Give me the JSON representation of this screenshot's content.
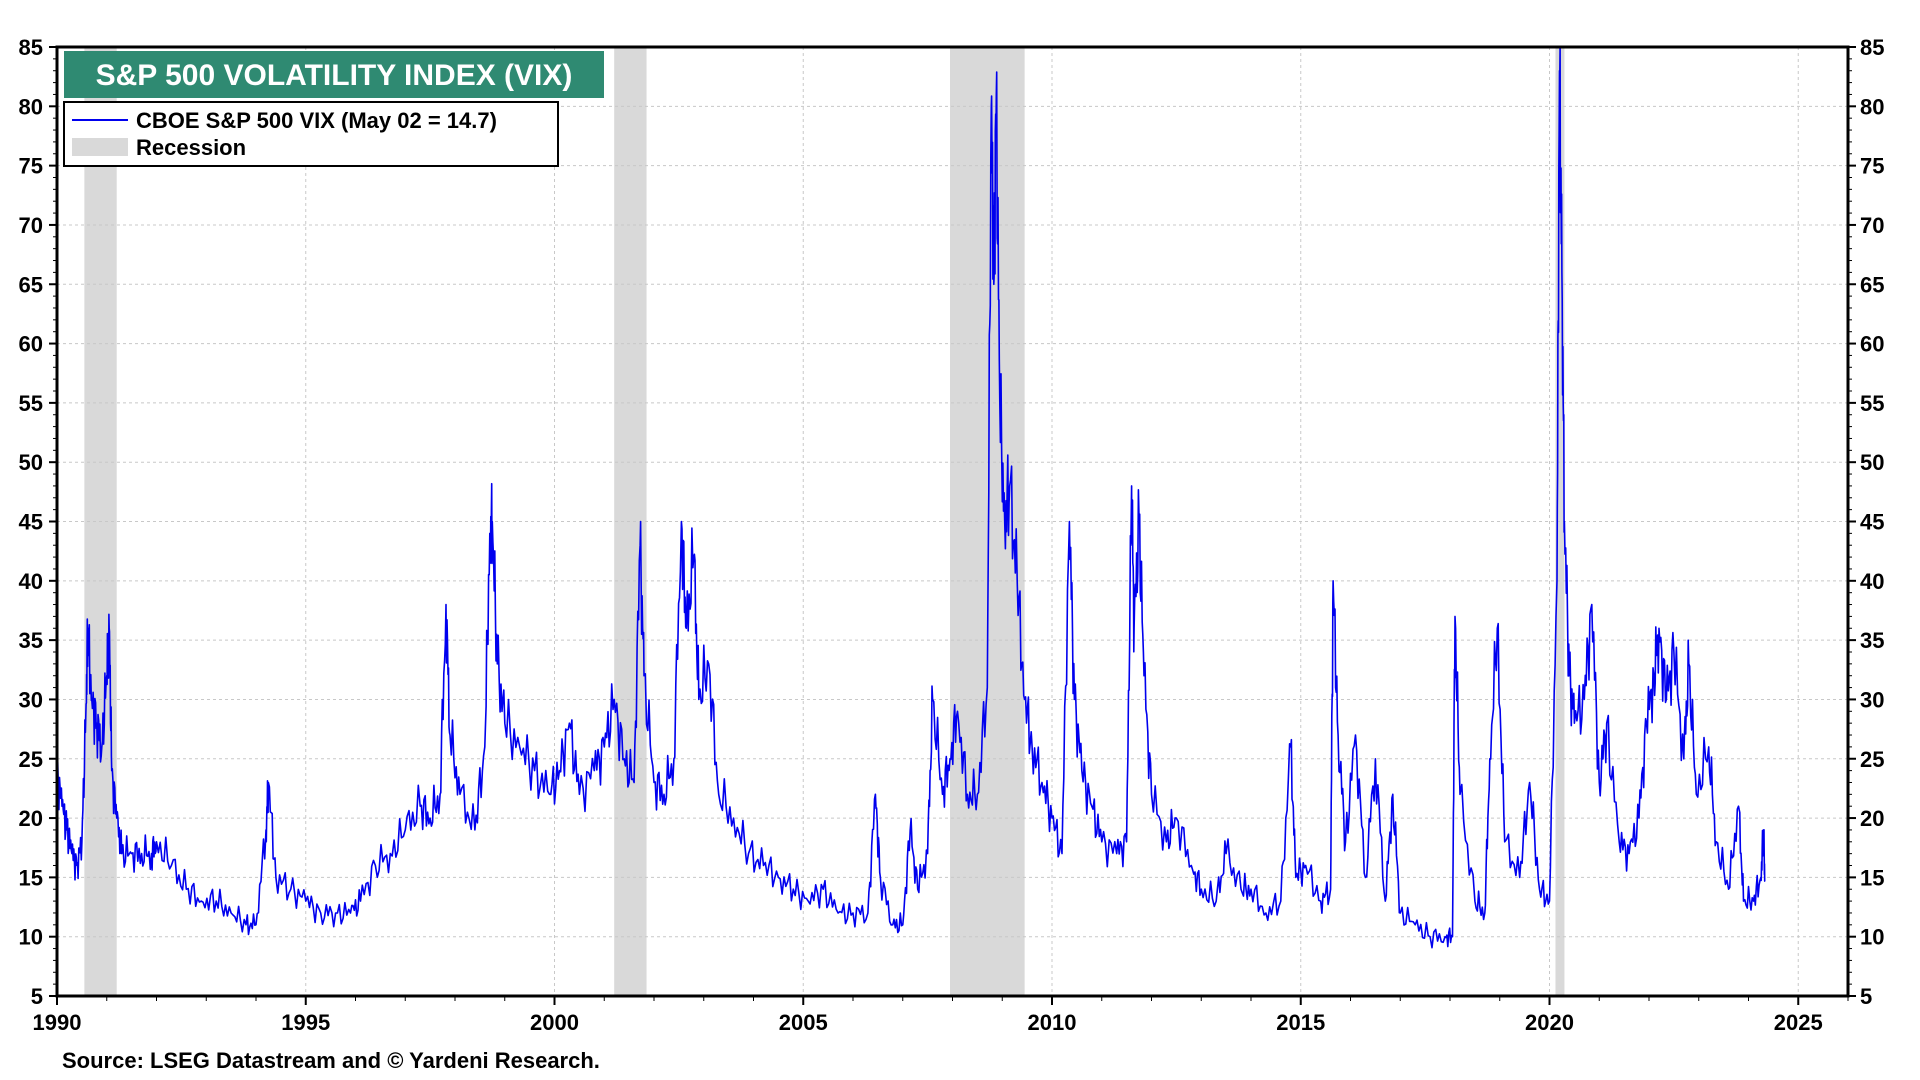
{
  "chart_data": {
    "type": "line",
    "title": "S&P 500 VOLATILITY INDEX (VIX)",
    "source": "Source: LSEG Datastream and © Yardeni Research.",
    "legend": {
      "placement": "top-left",
      "items": [
        {
          "label": "CBOE S&P 500 VIX (May 02 = 14.7)",
          "kind": "line"
        },
        {
          "label": "Recession",
          "kind": "shade"
        }
      ]
    },
    "colors": {
      "series": "#0000ee",
      "recession": "#d9d9d9",
      "title_bg": "#2f8a72",
      "grid": "#c8c8c8"
    },
    "xlim": [
      1990,
      2026
    ],
    "ylim": [
      5,
      85
    ],
    "x_ticks": [
      1990,
      1995,
      2000,
      2005,
      2010,
      2015,
      2020,
      2025
    ],
    "y_ticks": [
      5,
      10,
      15,
      20,
      25,
      30,
      35,
      40,
      45,
      50,
      55,
      60,
      65,
      70,
      75,
      80,
      85
    ],
    "y_axis_both_sides": true,
    "grid": true,
    "recessions": [
      [
        1990.55,
        1991.2
      ],
      [
        2001.2,
        2001.85
      ],
      [
        2007.95,
        2009.45
      ],
      [
        2020.12,
        2020.3
      ]
    ],
    "series": [
      {
        "name": "CBOE S&P 500 VIX (May 02 = 14.7)",
        "points": [
          [
            1990.0,
            24
          ],
          [
            1990.1,
            21
          ],
          [
            1990.2,
            19
          ],
          [
            1990.3,
            17
          ],
          [
            1990.4,
            16
          ],
          [
            1990.5,
            18
          ],
          [
            1990.58,
            29
          ],
          [
            1990.62,
            36
          ],
          [
            1990.7,
            30
          ],
          [
            1990.8,
            28
          ],
          [
            1990.9,
            26
          ],
          [
            1991.0,
            32
          ],
          [
            1991.05,
            36
          ],
          [
            1991.1,
            24
          ],
          [
            1991.2,
            20
          ],
          [
            1991.3,
            17
          ],
          [
            1991.5,
            17
          ],
          [
            1991.7,
            17
          ],
          [
            1991.9,
            17
          ],
          [
            1992.0,
            18
          ],
          [
            1992.3,
            16
          ],
          [
            1992.6,
            14
          ],
          [
            1992.9,
            13
          ],
          [
            1993.2,
            13
          ],
          [
            1993.5,
            12
          ],
          [
            1993.8,
            11
          ],
          [
            1994.0,
            11
          ],
          [
            1994.2,
            19
          ],
          [
            1994.25,
            23
          ],
          [
            1994.4,
            15
          ],
          [
            1994.7,
            14
          ],
          [
            1995.0,
            13
          ],
          [
            1995.3,
            12
          ],
          [
            1995.6,
            12
          ],
          [
            1995.9,
            12
          ],
          [
            1996.1,
            13
          ],
          [
            1996.4,
            16
          ],
          [
            1996.7,
            17
          ],
          [
            1997.0,
            19
          ],
          [
            1997.3,
            21
          ],
          [
            1997.5,
            20
          ],
          [
            1997.7,
            22
          ],
          [
            1997.82,
            38
          ],
          [
            1997.9,
            27
          ],
          [
            1998.1,
            22
          ],
          [
            1998.4,
            19
          ],
          [
            1998.6,
            26
          ],
          [
            1998.7,
            44
          ],
          [
            1998.75,
            45
          ],
          [
            1998.85,
            33
          ],
          [
            1999.0,
            28
          ],
          [
            1999.3,
            26
          ],
          [
            1999.6,
            24
          ],
          [
            1999.9,
            22
          ],
          [
            2000.1,
            24
          ],
          [
            2000.3,
            28
          ],
          [
            2000.5,
            22
          ],
          [
            2000.8,
            24
          ],
          [
            2001.0,
            26
          ],
          [
            2001.2,
            30
          ],
          [
            2001.4,
            25
          ],
          [
            2001.6,
            23
          ],
          [
            2001.72,
            43
          ],
          [
            2001.8,
            32
          ],
          [
            2002.0,
            23
          ],
          [
            2002.2,
            22
          ],
          [
            2002.4,
            25
          ],
          [
            2002.55,
            45
          ],
          [
            2002.65,
            36
          ],
          [
            2002.8,
            42
          ],
          [
            2002.9,
            30
          ],
          [
            2003.1,
            33
          ],
          [
            2003.3,
            22
          ],
          [
            2003.6,
            20
          ],
          [
            2003.9,
            17
          ],
          [
            2004.2,
            16
          ],
          [
            2004.5,
            15
          ],
          [
            2004.8,
            14
          ],
          [
            2005.1,
            13
          ],
          [
            2005.4,
            14
          ],
          [
            2005.7,
            12
          ],
          [
            2006.0,
            12
          ],
          [
            2006.3,
            12
          ],
          [
            2006.45,
            22
          ],
          [
            2006.55,
            15
          ],
          [
            2006.8,
            11
          ],
          [
            2007.0,
            11
          ],
          [
            2007.15,
            19
          ],
          [
            2007.3,
            14
          ],
          [
            2007.5,
            17
          ],
          [
            2007.6,
            30
          ],
          [
            2007.8,
            22
          ],
          [
            2007.95,
            25
          ],
          [
            2008.1,
            29
          ],
          [
            2008.3,
            22
          ],
          [
            2008.5,
            22
          ],
          [
            2008.7,
            31
          ],
          [
            2008.78,
            80
          ],
          [
            2008.83,
            65
          ],
          [
            2008.88,
            81
          ],
          [
            2008.95,
            55
          ],
          [
            2009.05,
            45
          ],
          [
            2009.15,
            48
          ],
          [
            2009.3,
            40
          ],
          [
            2009.45,
            30
          ],
          [
            2009.6,
            26
          ],
          [
            2009.8,
            23
          ],
          [
            2010.0,
            20
          ],
          [
            2010.2,
            17
          ],
          [
            2010.35,
            45
          ],
          [
            2010.45,
            30
          ],
          [
            2010.6,
            24
          ],
          [
            2010.8,
            21
          ],
          [
            2011.0,
            18
          ],
          [
            2011.3,
            17
          ],
          [
            2011.5,
            18
          ],
          [
            2011.6,
            48
          ],
          [
            2011.65,
            36
          ],
          [
            2011.75,
            45
          ],
          [
            2011.85,
            32
          ],
          [
            2012.0,
            22
          ],
          [
            2012.3,
            18
          ],
          [
            2012.5,
            20
          ],
          [
            2012.8,
            16
          ],
          [
            2013.0,
            14
          ],
          [
            2013.3,
            13
          ],
          [
            2013.5,
            17
          ],
          [
            2013.8,
            14
          ],
          [
            2014.0,
            14
          ],
          [
            2014.3,
            12
          ],
          [
            2014.6,
            13
          ],
          [
            2014.8,
            26
          ],
          [
            2014.9,
            15
          ],
          [
            2015.1,
            16
          ],
          [
            2015.4,
            13
          ],
          [
            2015.6,
            14
          ],
          [
            2015.65,
            40
          ],
          [
            2015.75,
            27
          ],
          [
            2015.9,
            18
          ],
          [
            2016.1,
            27
          ],
          [
            2016.3,
            15
          ],
          [
            2016.5,
            25
          ],
          [
            2016.7,
            13
          ],
          [
            2016.85,
            22
          ],
          [
            2017.0,
            12
          ],
          [
            2017.3,
            11
          ],
          [
            2017.6,
            10
          ],
          [
            2017.9,
            10
          ],
          [
            2018.05,
            10
          ],
          [
            2018.1,
            37
          ],
          [
            2018.2,
            22
          ],
          [
            2018.5,
            13
          ],
          [
            2018.7,
            12
          ],
          [
            2018.8,
            25
          ],
          [
            2018.95,
            36
          ],
          [
            2019.1,
            18
          ],
          [
            2019.4,
            15
          ],
          [
            2019.6,
            23
          ],
          [
            2019.8,
            14
          ],
          [
            2020.0,
            13
          ],
          [
            2020.15,
            40
          ],
          [
            2020.2,
            83
          ],
          [
            2020.25,
            66
          ],
          [
            2020.3,
            45
          ],
          [
            2020.4,
            32
          ],
          [
            2020.5,
            28
          ],
          [
            2020.7,
            30
          ],
          [
            2020.85,
            38
          ],
          [
            2021.0,
            23
          ],
          [
            2021.15,
            28
          ],
          [
            2021.4,
            18
          ],
          [
            2021.6,
            17
          ],
          [
            2021.8,
            20
          ],
          [
            2021.95,
            28
          ],
          [
            2022.1,
            32
          ],
          [
            2022.2,
            36
          ],
          [
            2022.35,
            30
          ],
          [
            2022.5,
            34
          ],
          [
            2022.7,
            25
          ],
          [
            2022.8,
            33
          ],
          [
            2022.95,
            22
          ],
          [
            2023.2,
            26
          ],
          [
            2023.35,
            18
          ],
          [
            2023.6,
            14
          ],
          [
            2023.8,
            21
          ],
          [
            2023.9,
            13
          ],
          [
            2024.1,
            13
          ],
          [
            2024.25,
            15
          ],
          [
            2024.3,
            19
          ],
          [
            2024.33,
            14.7
          ]
        ]
      }
    ]
  }
}
